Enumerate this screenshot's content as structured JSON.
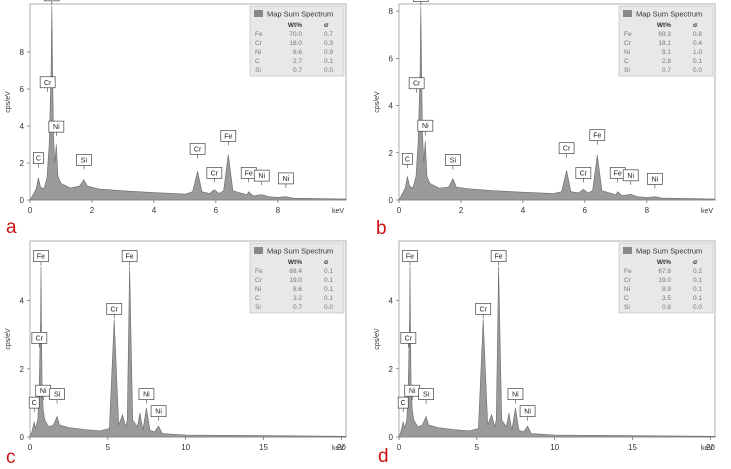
{
  "colors": {
    "fill": "#9a9a9a",
    "edge": "#6a6a6a",
    "legend_bg": "#e8e8e8",
    "legend_swatch": "#888888",
    "label_red": "#cc1111",
    "ni_highlight": "#cc0000"
  },
  "chart_data": [
    {
      "type": "area",
      "letter": "a",
      "xlabel": "keV",
      "ylabel": "cps/eV",
      "xlim": [
        0,
        10.2
      ],
      "ylim": [
        0,
        10.6
      ],
      "xticks": [
        0,
        2,
        4,
        6,
        8
      ],
      "yticks": [
        0,
        2,
        4,
        6,
        8
      ],
      "curve": [
        [
          0,
          0
        ],
        [
          0.1,
          0.3
        ],
        [
          0.2,
          0.6
        ],
        [
          0.27,
          1.2
        ],
        [
          0.34,
          0.7
        ],
        [
          0.45,
          0.6
        ],
        [
          0.55,
          1.2
        ],
        [
          0.62,
          3.0
        ],
        [
          0.68,
          7.0
        ],
        [
          0.705,
          10.5
        ],
        [
          0.73,
          7.0
        ],
        [
          0.76,
          3.5
        ],
        [
          0.8,
          2.0
        ],
        [
          0.85,
          3.0
        ],
        [
          0.9,
          1.3
        ],
        [
          1.0,
          0.9
        ],
        [
          1.3,
          0.65
        ],
        [
          1.6,
          0.75
        ],
        [
          1.74,
          1.1
        ],
        [
          1.85,
          0.75
        ],
        [
          2.2,
          0.6
        ],
        [
          3.0,
          0.5
        ],
        [
          4.0,
          0.4
        ],
        [
          5.0,
          0.32
        ],
        [
          5.25,
          0.45
        ],
        [
          5.41,
          1.55
        ],
        [
          5.55,
          0.45
        ],
        [
          5.8,
          0.35
        ],
        [
          5.95,
          0.55
        ],
        [
          6.1,
          0.35
        ],
        [
          6.25,
          0.5
        ],
        [
          6.4,
          2.45
        ],
        [
          6.55,
          0.5
        ],
        [
          7.0,
          0.28
        ],
        [
          7.06,
          0.45
        ],
        [
          7.2,
          0.22
        ],
        [
          7.48,
          0.3
        ],
        [
          7.7,
          0.18
        ],
        [
          8.0,
          0.14
        ],
        [
          8.26,
          0.18
        ],
        [
          8.5,
          0.1
        ],
        [
          10.2,
          0.05
        ]
      ],
      "peaks": [
        {
          "label": "Fe",
          "x": 0.705,
          "y": 10.5
        },
        {
          "label": "Cr",
          "x": 0.57,
          "y": 5.8
        },
        {
          "label": "Ni",
          "x": 0.85,
          "y": 3.4
        },
        {
          "label": "C",
          "x": 0.27,
          "y": 1.7
        },
        {
          "label": "Si",
          "x": 1.74,
          "y": 1.6
        },
        {
          "label": "Cr",
          "x": 5.41,
          "y": 2.2
        },
        {
          "label": "Fe",
          "x": 6.4,
          "y": 2.9
        },
        {
          "label": "Cr",
          "x": 5.95,
          "y": 0.9
        },
        {
          "label": "Fe",
          "x": 7.06,
          "y": 0.9
        },
        {
          "label": "Ni",
          "x": 7.48,
          "y": 0.75
        },
        {
          "label": "Ni",
          "x": 8.26,
          "y": 0.6
        }
      ],
      "legend": {
        "title": "Map Sum Spectrum",
        "headers": [
          "Wt%",
          "σ"
        ],
        "rows": [
          {
            "el": "Fe",
            "wt": "70.0",
            "sigma": "0.7"
          },
          {
            "el": "Cr",
            "wt": "18.0",
            "sigma": "0.3"
          },
          {
            "el": "Ni",
            "wt": "8.6",
            "sigma": "0.9",
            "highlight": true
          },
          {
            "el": "C",
            "wt": "2.7",
            "sigma": "0.1"
          },
          {
            "el": "Si",
            "wt": "0.7",
            "sigma": "0.0"
          }
        ]
      }
    },
    {
      "type": "area",
      "letter": "b",
      "xlabel": "keV",
      "ylabel": "cps/eV",
      "xlim": [
        0,
        10.2
      ],
      "ylim": [
        0,
        8.3
      ],
      "xticks": [
        0,
        2,
        4,
        6,
        8
      ],
      "yticks": [
        0,
        2,
        4,
        6,
        8
      ],
      "curve": [
        [
          0,
          0
        ],
        [
          0.1,
          0.25
        ],
        [
          0.2,
          0.5
        ],
        [
          0.27,
          1.0
        ],
        [
          0.34,
          0.6
        ],
        [
          0.45,
          0.5
        ],
        [
          0.55,
          1.0
        ],
        [
          0.62,
          2.5
        ],
        [
          0.68,
          5.5
        ],
        [
          0.705,
          8.2
        ],
        [
          0.73,
          5.5
        ],
        [
          0.76,
          2.8
        ],
        [
          0.8,
          1.6
        ],
        [
          0.85,
          2.5
        ],
        [
          0.9,
          1.0
        ],
        [
          1.0,
          0.7
        ],
        [
          1.3,
          0.5
        ],
        [
          1.6,
          0.55
        ],
        [
          1.74,
          0.9
        ],
        [
          1.85,
          0.55
        ],
        [
          2.2,
          0.48
        ],
        [
          3.0,
          0.4
        ],
        [
          4.0,
          0.33
        ],
        [
          5.0,
          0.27
        ],
        [
          5.25,
          0.35
        ],
        [
          5.41,
          1.25
        ],
        [
          5.55,
          0.35
        ],
        [
          5.8,
          0.3
        ],
        [
          5.95,
          0.45
        ],
        [
          6.1,
          0.3
        ],
        [
          6.25,
          0.4
        ],
        [
          6.4,
          1.9
        ],
        [
          6.55,
          0.4
        ],
        [
          7.0,
          0.22
        ],
        [
          7.06,
          0.35
        ],
        [
          7.2,
          0.18
        ],
        [
          7.48,
          0.24
        ],
        [
          7.7,
          0.14
        ],
        [
          8.0,
          0.1
        ],
        [
          8.26,
          0.14
        ],
        [
          8.5,
          0.08
        ],
        [
          10.2,
          0.04
        ]
      ],
      "peaks": [
        {
          "label": "Fe",
          "x": 0.705,
          "y": 8.2
        },
        {
          "label": "Cr",
          "x": 0.57,
          "y": 4.5
        },
        {
          "label": "Ni",
          "x": 0.85,
          "y": 2.7
        },
        {
          "label": "C",
          "x": 0.27,
          "y": 1.3
        },
        {
          "label": "Si",
          "x": 1.74,
          "y": 1.25
        },
        {
          "label": "Cr",
          "x": 5.41,
          "y": 1.75
        },
        {
          "label": "Fe",
          "x": 6.4,
          "y": 2.3
        },
        {
          "label": "Cr",
          "x": 5.95,
          "y": 0.7
        },
        {
          "label": "Fe",
          "x": 7.06,
          "y": 0.7
        },
        {
          "label": "Ni",
          "x": 7.48,
          "y": 0.6
        },
        {
          "label": "Ni",
          "x": 8.26,
          "y": 0.45
        }
      ],
      "legend": {
        "title": "Map Sum Spectrum",
        "headers": [
          "Wt%",
          "σ"
        ],
        "rows": [
          {
            "el": "Fe",
            "wt": "69.3",
            "sigma": "0.8"
          },
          {
            "el": "Cr",
            "wt": "18.1",
            "sigma": "0.4"
          },
          {
            "el": "Ni",
            "wt": "9.1",
            "sigma": "1.0",
            "highlight": true
          },
          {
            "el": "C",
            "wt": "2.8",
            "sigma": "0.1"
          },
          {
            "el": "Si",
            "wt": "0.7",
            "sigma": "0.0"
          }
        ]
      }
    },
    {
      "type": "area",
      "letter": "c",
      "xlabel": "keV",
      "ylabel": "cps/eV",
      "xlim": [
        0,
        20.3
      ],
      "ylim": [
        0,
        5.75
      ],
      "xticks": [
        0,
        5,
        10,
        15,
        20
      ],
      "yticks": [
        0,
        2,
        4
      ],
      "curve": [
        [
          0,
          0
        ],
        [
          0.15,
          0.2
        ],
        [
          0.27,
          0.45
        ],
        [
          0.35,
          0.25
        ],
        [
          0.5,
          0.5
        ],
        [
          0.6,
          1.6
        ],
        [
          0.68,
          3.5
        ],
        [
          0.705,
          5.0
        ],
        [
          0.73,
          3.5
        ],
        [
          0.78,
          1.5
        ],
        [
          0.85,
          0.8
        ],
        [
          0.95,
          0.5
        ],
        [
          1.2,
          0.3
        ],
        [
          1.5,
          0.35
        ],
        [
          1.74,
          0.6
        ],
        [
          1.9,
          0.35
        ],
        [
          2.5,
          0.28
        ],
        [
          3.5,
          0.22
        ],
        [
          4.5,
          0.18
        ],
        [
          5.1,
          0.25
        ],
        [
          5.41,
          3.45
        ],
        [
          5.7,
          0.35
        ],
        [
          5.95,
          0.65
        ],
        [
          6.15,
          0.3
        ],
        [
          6.25,
          0.5
        ],
        [
          6.4,
          5.0
        ],
        [
          6.6,
          0.5
        ],
        [
          6.9,
          0.3
        ],
        [
          7.06,
          0.7
        ],
        [
          7.25,
          0.2
        ],
        [
          7.48,
          0.85
        ],
        [
          7.7,
          0.2
        ],
        [
          8.0,
          0.15
        ],
        [
          8.26,
          0.32
        ],
        [
          8.5,
          0.1
        ],
        [
          10,
          0.06
        ],
        [
          20.3,
          0.02
        ]
      ],
      "peaks": [
        {
          "label": "Fe",
          "x": 0.705,
          "y": 5.0
        },
        {
          "label": "Cr",
          "x": 0.6,
          "y": 2.6
        },
        {
          "label": "Ni",
          "x": 0.85,
          "y": 1.05
        },
        {
          "label": "C",
          "x": 0.27,
          "y": 0.7
        },
        {
          "label": "Si",
          "x": 1.74,
          "y": 0.95
        },
        {
          "label": "Cr",
          "x": 5.41,
          "y": 3.45
        },
        {
          "label": "Fe",
          "x": 6.4,
          "y": 5.0
        },
        {
          "label": "Ni",
          "x": 7.48,
          "y": 0.95
        },
        {
          "label": "Ni",
          "x": 8.26,
          "y": 0.45
        }
      ],
      "legend": {
        "title": "Map Sum Spectrum",
        "headers": [
          "Wt%",
          "σ"
        ],
        "rows": [
          {
            "el": "Fe",
            "wt": "68.4",
            "sigma": "0.1"
          },
          {
            "el": "Cr",
            "wt": "19.0",
            "sigma": "0.1"
          },
          {
            "el": "Ni",
            "wt": "8.6",
            "sigma": "0.1"
          },
          {
            "el": "C",
            "wt": "3.2",
            "sigma": "0.1"
          },
          {
            "el": "Si",
            "wt": "0.7",
            "sigma": "0.0"
          }
        ]
      }
    },
    {
      "type": "area",
      "letter": "d",
      "xlabel": "keV",
      "ylabel": "cps/eV",
      "xlim": [
        0,
        20.3
      ],
      "ylim": [
        0,
        5.75
      ],
      "xticks": [
        0,
        5,
        10,
        15,
        20
      ],
      "yticks": [
        0,
        2,
        4
      ],
      "curve": [
        [
          0,
          0
        ],
        [
          0.15,
          0.2
        ],
        [
          0.27,
          0.45
        ],
        [
          0.35,
          0.25
        ],
        [
          0.5,
          0.5
        ],
        [
          0.6,
          1.6
        ],
        [
          0.68,
          3.5
        ],
        [
          0.705,
          5.0
        ],
        [
          0.73,
          3.5
        ],
        [
          0.78,
          1.5
        ],
        [
          0.85,
          0.8
        ],
        [
          0.95,
          0.5
        ],
        [
          1.2,
          0.3
        ],
        [
          1.5,
          0.35
        ],
        [
          1.74,
          0.6
        ],
        [
          1.9,
          0.35
        ],
        [
          2.5,
          0.28
        ],
        [
          3.5,
          0.22
        ],
        [
          4.5,
          0.18
        ],
        [
          5.1,
          0.25
        ],
        [
          5.41,
          3.45
        ],
        [
          5.7,
          0.35
        ],
        [
          5.95,
          0.65
        ],
        [
          6.15,
          0.3
        ],
        [
          6.25,
          0.5
        ],
        [
          6.4,
          5.0
        ],
        [
          6.6,
          0.5
        ],
        [
          6.9,
          0.3
        ],
        [
          7.06,
          0.7
        ],
        [
          7.25,
          0.2
        ],
        [
          7.48,
          0.85
        ],
        [
          7.7,
          0.2
        ],
        [
          8.0,
          0.15
        ],
        [
          8.26,
          0.32
        ],
        [
          8.5,
          0.1
        ],
        [
          10,
          0.06
        ],
        [
          20.3,
          0.02
        ]
      ],
      "peaks": [
        {
          "label": "Fe",
          "x": 0.705,
          "y": 5.0
        },
        {
          "label": "Cr",
          "x": 0.6,
          "y": 2.6
        },
        {
          "label": "Ni",
          "x": 0.85,
          "y": 1.05
        },
        {
          "label": "C",
          "x": 0.27,
          "y": 0.7
        },
        {
          "label": "Si",
          "x": 1.74,
          "y": 0.95
        },
        {
          "label": "Cr",
          "x": 5.41,
          "y": 3.45
        },
        {
          "label": "Fe",
          "x": 6.4,
          "y": 5.0
        },
        {
          "label": "Ni",
          "x": 7.48,
          "y": 0.95
        },
        {
          "label": "Ni",
          "x": 8.26,
          "y": 0.45
        }
      ],
      "legend": {
        "title": "Map Sum Spectrum",
        "headers": [
          "Wt%",
          "σ"
        ],
        "rows": [
          {
            "el": "Fe",
            "wt": "67.8",
            "sigma": "0.2"
          },
          {
            "el": "Cr",
            "wt": "19.0",
            "sigma": "0.1"
          },
          {
            "el": "Ni",
            "wt": "8.9",
            "sigma": "0.1"
          },
          {
            "el": "C",
            "wt": "3.5",
            "sigma": "0.1"
          },
          {
            "el": "Si",
            "wt": "0.8",
            "sigma": "0.0"
          }
        ]
      }
    }
  ]
}
